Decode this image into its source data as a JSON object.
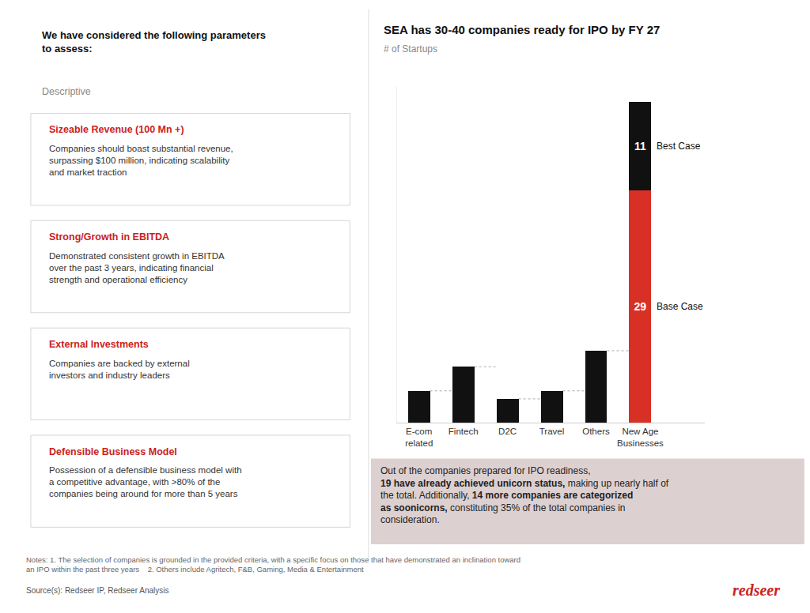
{
  "chart_data": {
    "type": "bar",
    "title": "SEA has 30-40 companies ready for IPO by FY 27",
    "subtitle": "# of Startups",
    "categories": [
      "E-com\nrelated",
      "Fintech",
      "D2C",
      "Travel",
      "Others",
      "New Age\nBusinesses"
    ],
    "series": [
      {
        "color": "#111111",
        "values": [
          4,
          7,
          3,
          4,
          9,
          null
        ]
      },
      {
        "name": "Base Case",
        "color": "#d93025",
        "values": [
          null,
          null,
          null,
          null,
          null,
          29
        ],
        "data_labels": true
      },
      {
        "name": "Best Case",
        "color": "#111111",
        "values": [
          null,
          null,
          null,
          null,
          null,
          11
        ],
        "data_labels": true
      }
    ],
    "stacked": true,
    "ylim": [
      0,
      42
    ],
    "grid": false,
    "tick_labels": "x"
  },
  "left_panel": {
    "title": "We have considered the following parameters\nto assess:",
    "subtitle": "Descriptive",
    "boxes": [
      {
        "heading": "Sizeable Revenue (100 Mn +)",
        "body": "Companies should boast substantial revenue,\nsurpassing $100 million, indicating scalability\nand market traction"
      },
      {
        "heading": "Strong/Growth in EBITDA",
        "body": "Demonstrated consistent growth in EBITDA\nover the past 3 years, indicating financial\nstrength and operational efficiency"
      },
      {
        "heading": "External Investments",
        "body": "Companies are backed by external\ninvestors and industry leaders"
      },
      {
        "heading": "Defensible Business Model",
        "body": "Possession of a defensible business model with\na competitive advantage, with >80% of the\ncompanies being around for more than 5 years"
      }
    ]
  },
  "callout": [
    [
      {
        "text": "Out of the companies prepared for IPO readiness, ",
        "bold": false
      }
    ],
    [
      {
        "text": "19 have already achieved unicorn status, ",
        "bold": true
      },
      {
        "text": "making up nearly half of",
        "bold": false
      }
    ],
    [
      {
        "text": "the total. Additionally, ",
        "bold": false
      },
      {
        "text": "14 more companies are categorized",
        "bold": true
      }
    ],
    [
      {
        "text": "as soonicorns, ",
        "bold": true
      },
      {
        "text": "constituting 35% of the total companies in",
        "bold": false
      }
    ],
    [
      {
        "text": "consideration.",
        "bold": false
      }
    ]
  ],
  "notes": "Notes: 1. The selection of companies is grounded in the provided criteria, with a specific focus on those that have demonstrated an inclination toward\nan IPO within the past three years    2. Others include Agritech, F&B, Gaming, Media & Entertainment",
  "source": "Source(s): Redseer IP, Redseer Analysis",
  "brand": {
    "text": "redseer",
    "color": "#cc2222"
  }
}
